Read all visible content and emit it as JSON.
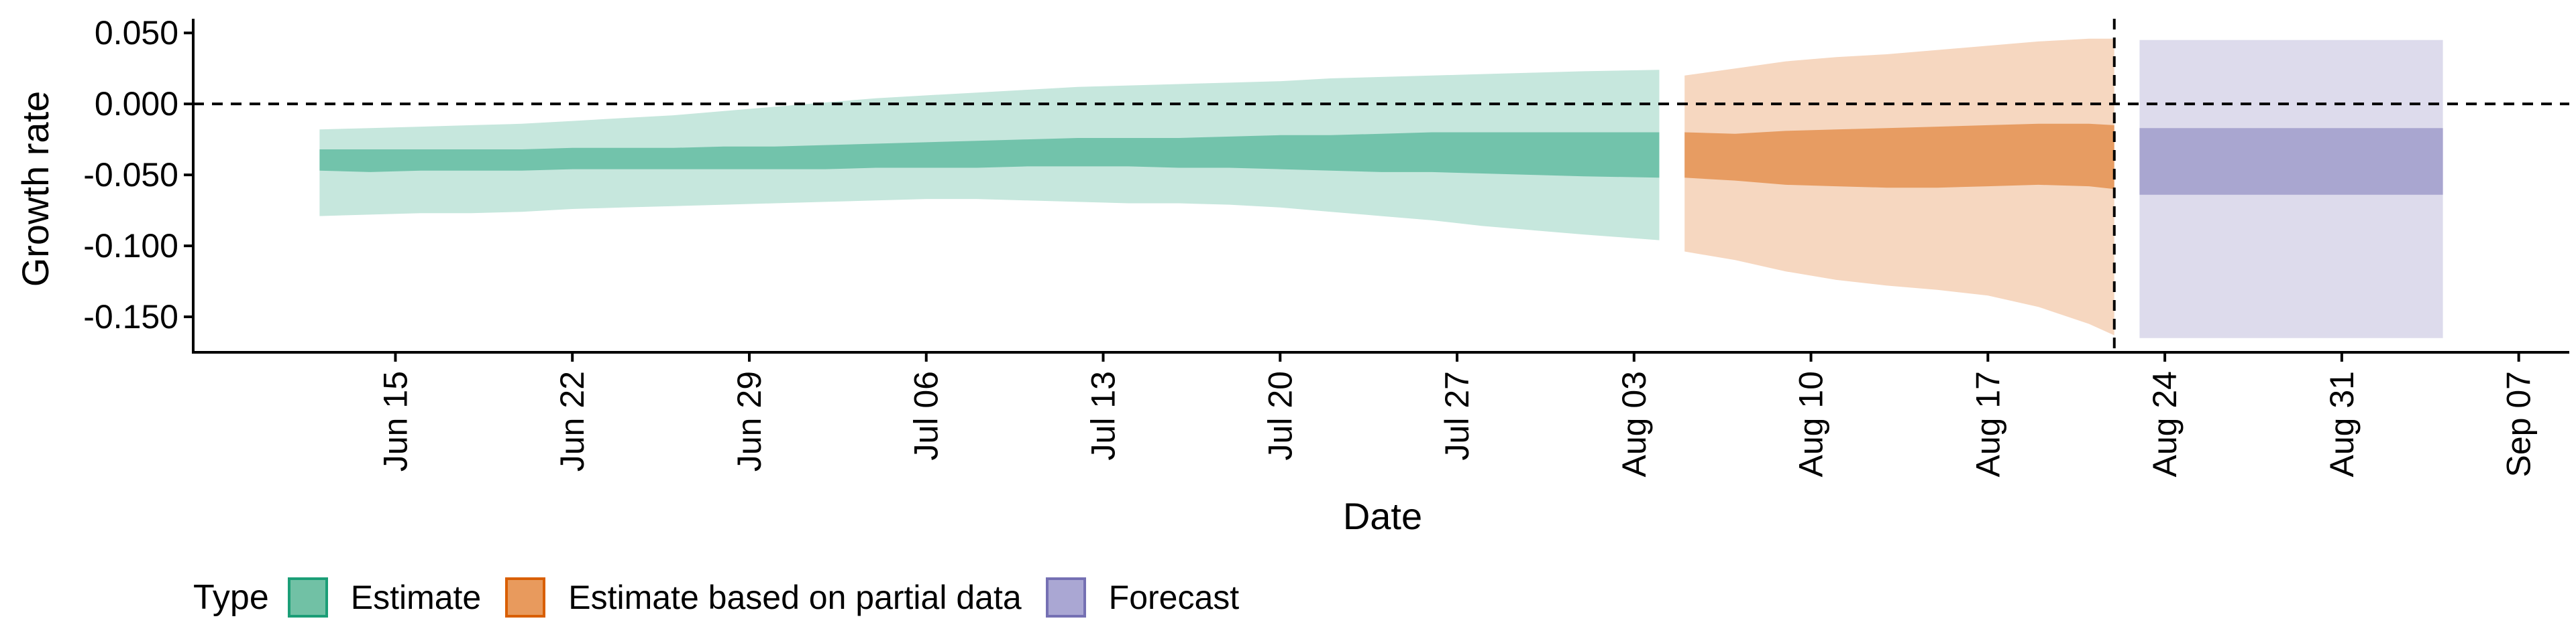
{
  "chart_data": {
    "type": "area",
    "title": "",
    "xlabel": "Date",
    "ylabel": "Growth rate",
    "xlim": [
      "2020-06-07",
      "2020-09-09"
    ],
    "ylim": [
      -0.175,
      0.06
    ],
    "y_ticks": [
      0.05,
      0.0,
      -0.05,
      -0.1,
      -0.15
    ],
    "y_tick_labels": [
      "0.050",
      "0.000",
      "-0.050",
      "-0.100",
      "-0.150"
    ],
    "x_ticks": [
      "2020-06-15",
      "2020-06-22",
      "2020-06-29",
      "2020-07-06",
      "2020-07-13",
      "2020-07-20",
      "2020-07-27",
      "2020-08-03",
      "2020-08-10",
      "2020-08-17",
      "2020-08-24",
      "2020-08-31",
      "2020-09-07"
    ],
    "x_tick_labels": [
      "Jun 15",
      "Jun 22",
      "Jun 29",
      "Jul 06",
      "Jul 13",
      "Jul 20",
      "Jul 27",
      "Aug 03",
      "Aug 10",
      "Aug 17",
      "Aug 24",
      "Aug 31",
      "Sep 07"
    ],
    "reference_lines": [
      {
        "orientation": "horizontal",
        "y": 0,
        "style": "dashed"
      },
      {
        "orientation": "vertical",
        "x": "2020-08-22",
        "style": "dashed"
      }
    ],
    "grid": false,
    "legend_position": "bottom-left",
    "legend_title": "Type",
    "series": [
      {
        "name": "Estimate",
        "color": "#1b9e77",
        "dates": [
          "2020-06-12",
          "2020-06-14",
          "2020-06-16",
          "2020-06-18",
          "2020-06-20",
          "2020-06-22",
          "2020-06-24",
          "2020-06-26",
          "2020-06-28",
          "2020-06-30",
          "2020-07-02",
          "2020-07-04",
          "2020-07-06",
          "2020-07-08",
          "2020-07-10",
          "2020-07-12",
          "2020-07-14",
          "2020-07-16",
          "2020-07-18",
          "2020-07-20",
          "2020-07-22",
          "2020-07-24",
          "2020-07-26",
          "2020-07-28",
          "2020-07-30",
          "2020-08-01",
          "2020-08-04"
        ],
        "outer_lower": [
          -0.079,
          -0.078,
          -0.077,
          -0.077,
          -0.076,
          -0.074,
          -0.073,
          -0.072,
          -0.071,
          -0.07,
          -0.069,
          -0.068,
          -0.067,
          -0.067,
          -0.068,
          -0.069,
          -0.07,
          -0.07,
          -0.071,
          -0.073,
          -0.076,
          -0.079,
          -0.082,
          -0.086,
          -0.089,
          -0.092,
          -0.096
        ],
        "inner_lower": [
          -0.047,
          -0.048,
          -0.047,
          -0.047,
          -0.047,
          -0.046,
          -0.046,
          -0.046,
          -0.046,
          -0.046,
          -0.046,
          -0.045,
          -0.045,
          -0.045,
          -0.044,
          -0.044,
          -0.044,
          -0.045,
          -0.045,
          -0.046,
          -0.047,
          -0.048,
          -0.048,
          -0.049,
          -0.05,
          -0.051,
          -0.052
        ],
        "inner_upper": [
          -0.032,
          -0.032,
          -0.032,
          -0.032,
          -0.032,
          -0.031,
          -0.031,
          -0.031,
          -0.03,
          -0.03,
          -0.029,
          -0.028,
          -0.027,
          -0.026,
          -0.025,
          -0.024,
          -0.024,
          -0.024,
          -0.023,
          -0.022,
          -0.022,
          -0.021,
          -0.02,
          -0.02,
          -0.02,
          -0.02,
          -0.02
        ],
        "outer_upper": [
          -0.018,
          -0.017,
          -0.016,
          -0.015,
          -0.014,
          -0.012,
          -0.01,
          -0.008,
          -0.005,
          -0.002,
          0.001,
          0.004,
          0.006,
          0.008,
          0.01,
          0.012,
          0.013,
          0.014,
          0.015,
          0.016,
          0.018,
          0.019,
          0.02,
          0.021,
          0.022,
          0.023,
          0.024
        ]
      },
      {
        "name": "Estimate based on partial data",
        "color": "#d95f02",
        "dates": [
          "2020-08-05",
          "2020-08-07",
          "2020-08-09",
          "2020-08-11",
          "2020-08-13",
          "2020-08-15",
          "2020-08-17",
          "2020-08-19",
          "2020-08-21",
          "2020-08-22"
        ],
        "outer_lower": [
          -0.104,
          -0.11,
          -0.118,
          -0.124,
          -0.128,
          -0.131,
          -0.135,
          -0.143,
          -0.155,
          -0.163
        ],
        "inner_lower": [
          -0.052,
          -0.054,
          -0.057,
          -0.058,
          -0.059,
          -0.059,
          -0.058,
          -0.057,
          -0.058,
          -0.06
        ],
        "inner_upper": [
          -0.02,
          -0.021,
          -0.019,
          -0.018,
          -0.017,
          -0.016,
          -0.015,
          -0.014,
          -0.014,
          -0.015
        ],
        "outer_upper": [
          0.02,
          0.025,
          0.03,
          0.033,
          0.035,
          0.038,
          0.041,
          0.044,
          0.046,
          0.046
        ]
      },
      {
        "name": "Forecast",
        "color": "#7570b3",
        "dates": [
          "2020-08-23",
          "2020-09-04"
        ],
        "outer_lower": [
          -0.165,
          -0.165
        ],
        "inner_lower": [
          -0.064,
          -0.064
        ],
        "inner_upper": [
          -0.017,
          -0.017
        ],
        "outer_upper": [
          0.045,
          0.045
        ]
      }
    ]
  },
  "legend": {
    "title": "Type",
    "items": [
      {
        "label": "Estimate",
        "fill": "#71c1a5",
        "border": "#1b9e77"
      },
      {
        "label": "Estimate based on partial data",
        "fill": "#e89a5d",
        "border": "#d95f02"
      },
      {
        "label": "Forecast",
        "fill": "#aaa7d3",
        "border": "#7570b3"
      }
    ]
  }
}
